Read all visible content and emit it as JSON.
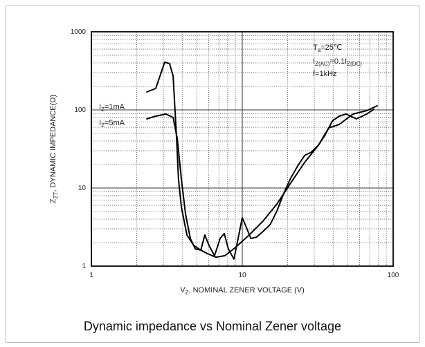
{
  "chart_data": {
    "type": "line",
    "caption": "Dynamic impedance vs Nominal Zener voltage",
    "x_label": [
      {
        "text": "V"
      },
      {
        "sub": "Z"
      },
      {
        "text": ", NOMINAL ZENER VOLTAGE (V)"
      }
    ],
    "y_label": [
      {
        "text": "Z"
      },
      {
        "sub": "ZT"
      },
      {
        "text": ", DYNAMIC IMPEDANCE(Ω)"
      }
    ],
    "annotations": [
      [
        {
          "text": "T"
        },
        {
          "sub": "a"
        },
        {
          "text": "=25℃"
        }
      ],
      [
        {
          "text": "I"
        },
        {
          "sub": "Z(AC)"
        },
        {
          "text": "=0.1I"
        },
        {
          "sub": "Z(DC)"
        }
      ],
      [
        {
          "text": "f=1kHz"
        }
      ]
    ],
    "xscale": "log",
    "yscale": "log",
    "xlim": [
      1,
      100
    ],
    "ylim": [
      1,
      1000
    ],
    "xticks": [
      1,
      10,
      100
    ],
    "yticks": [
      1,
      10,
      100,
      1000
    ],
    "grid": true,
    "minor_grid": true,
    "series": [
      {
        "label": [
          {
            "text": "I"
          },
          {
            "sub": "Z"
          },
          {
            "text": "=1mA"
          }
        ],
        "color": "#000000",
        "x": [
          2.33,
          2.67,
          3.06,
          3.3,
          3.48,
          3.67,
          3.78,
          3.95,
          4.3,
          4.77,
          5.31,
          5.9,
          6.69,
          7.68,
          9.0,
          11.1,
          13.7,
          17.0,
          20.9,
          25.9,
          32.0,
          37.4,
          43.9,
          54.2,
          66.9,
          78.4
        ],
        "values": [
          170,
          188,
          408,
          392,
          272,
          43,
          12.8,
          5.65,
          2.5,
          1.84,
          1.6,
          1.44,
          1.3,
          1.36,
          1.73,
          2.5,
          3.76,
          6.26,
          11.5,
          21.3,
          35.4,
          58.9,
          65.2,
          88.5,
          98,
          113
        ]
      },
      {
        "label": [
          {
            "text": "I"
          },
          {
            "sub": "Z"
          },
          {
            "text": "=5mA"
          }
        ],
        "color": "#000000",
        "x": [
          2.33,
          2.67,
          3.13,
          3.48,
          3.71,
          3.95,
          4.21,
          4.53,
          4.88,
          5.31,
          5.65,
          6.02,
          6.55,
          7.13,
          7.6,
          8.09,
          8.81,
          9.49,
          10,
          10.7,
          11.4,
          12.4,
          13.7,
          15.3,
          17.0,
          18.8,
          20.9,
          23.3,
          25.9,
          28.7,
          32.0,
          35.5,
          39.5,
          43.9,
          48.8,
          57.1,
          66.9,
          74.4
        ],
        "values": [
          76.7,
          83.3,
          88.5,
          80,
          43,
          12.8,
          4.61,
          2.26,
          1.66,
          1.6,
          2.5,
          1.84,
          1.36,
          2.26,
          2.61,
          1.66,
          1.23,
          2.5,
          4.16,
          3.07,
          2.26,
          2.35,
          2.77,
          3.4,
          5.11,
          8.5,
          13.3,
          19.2,
          26.1,
          28.8,
          35.4,
          48.0,
          72.1,
          83.3,
          88.5,
          76.7,
          88.5,
          102
        ]
      }
    ]
  }
}
